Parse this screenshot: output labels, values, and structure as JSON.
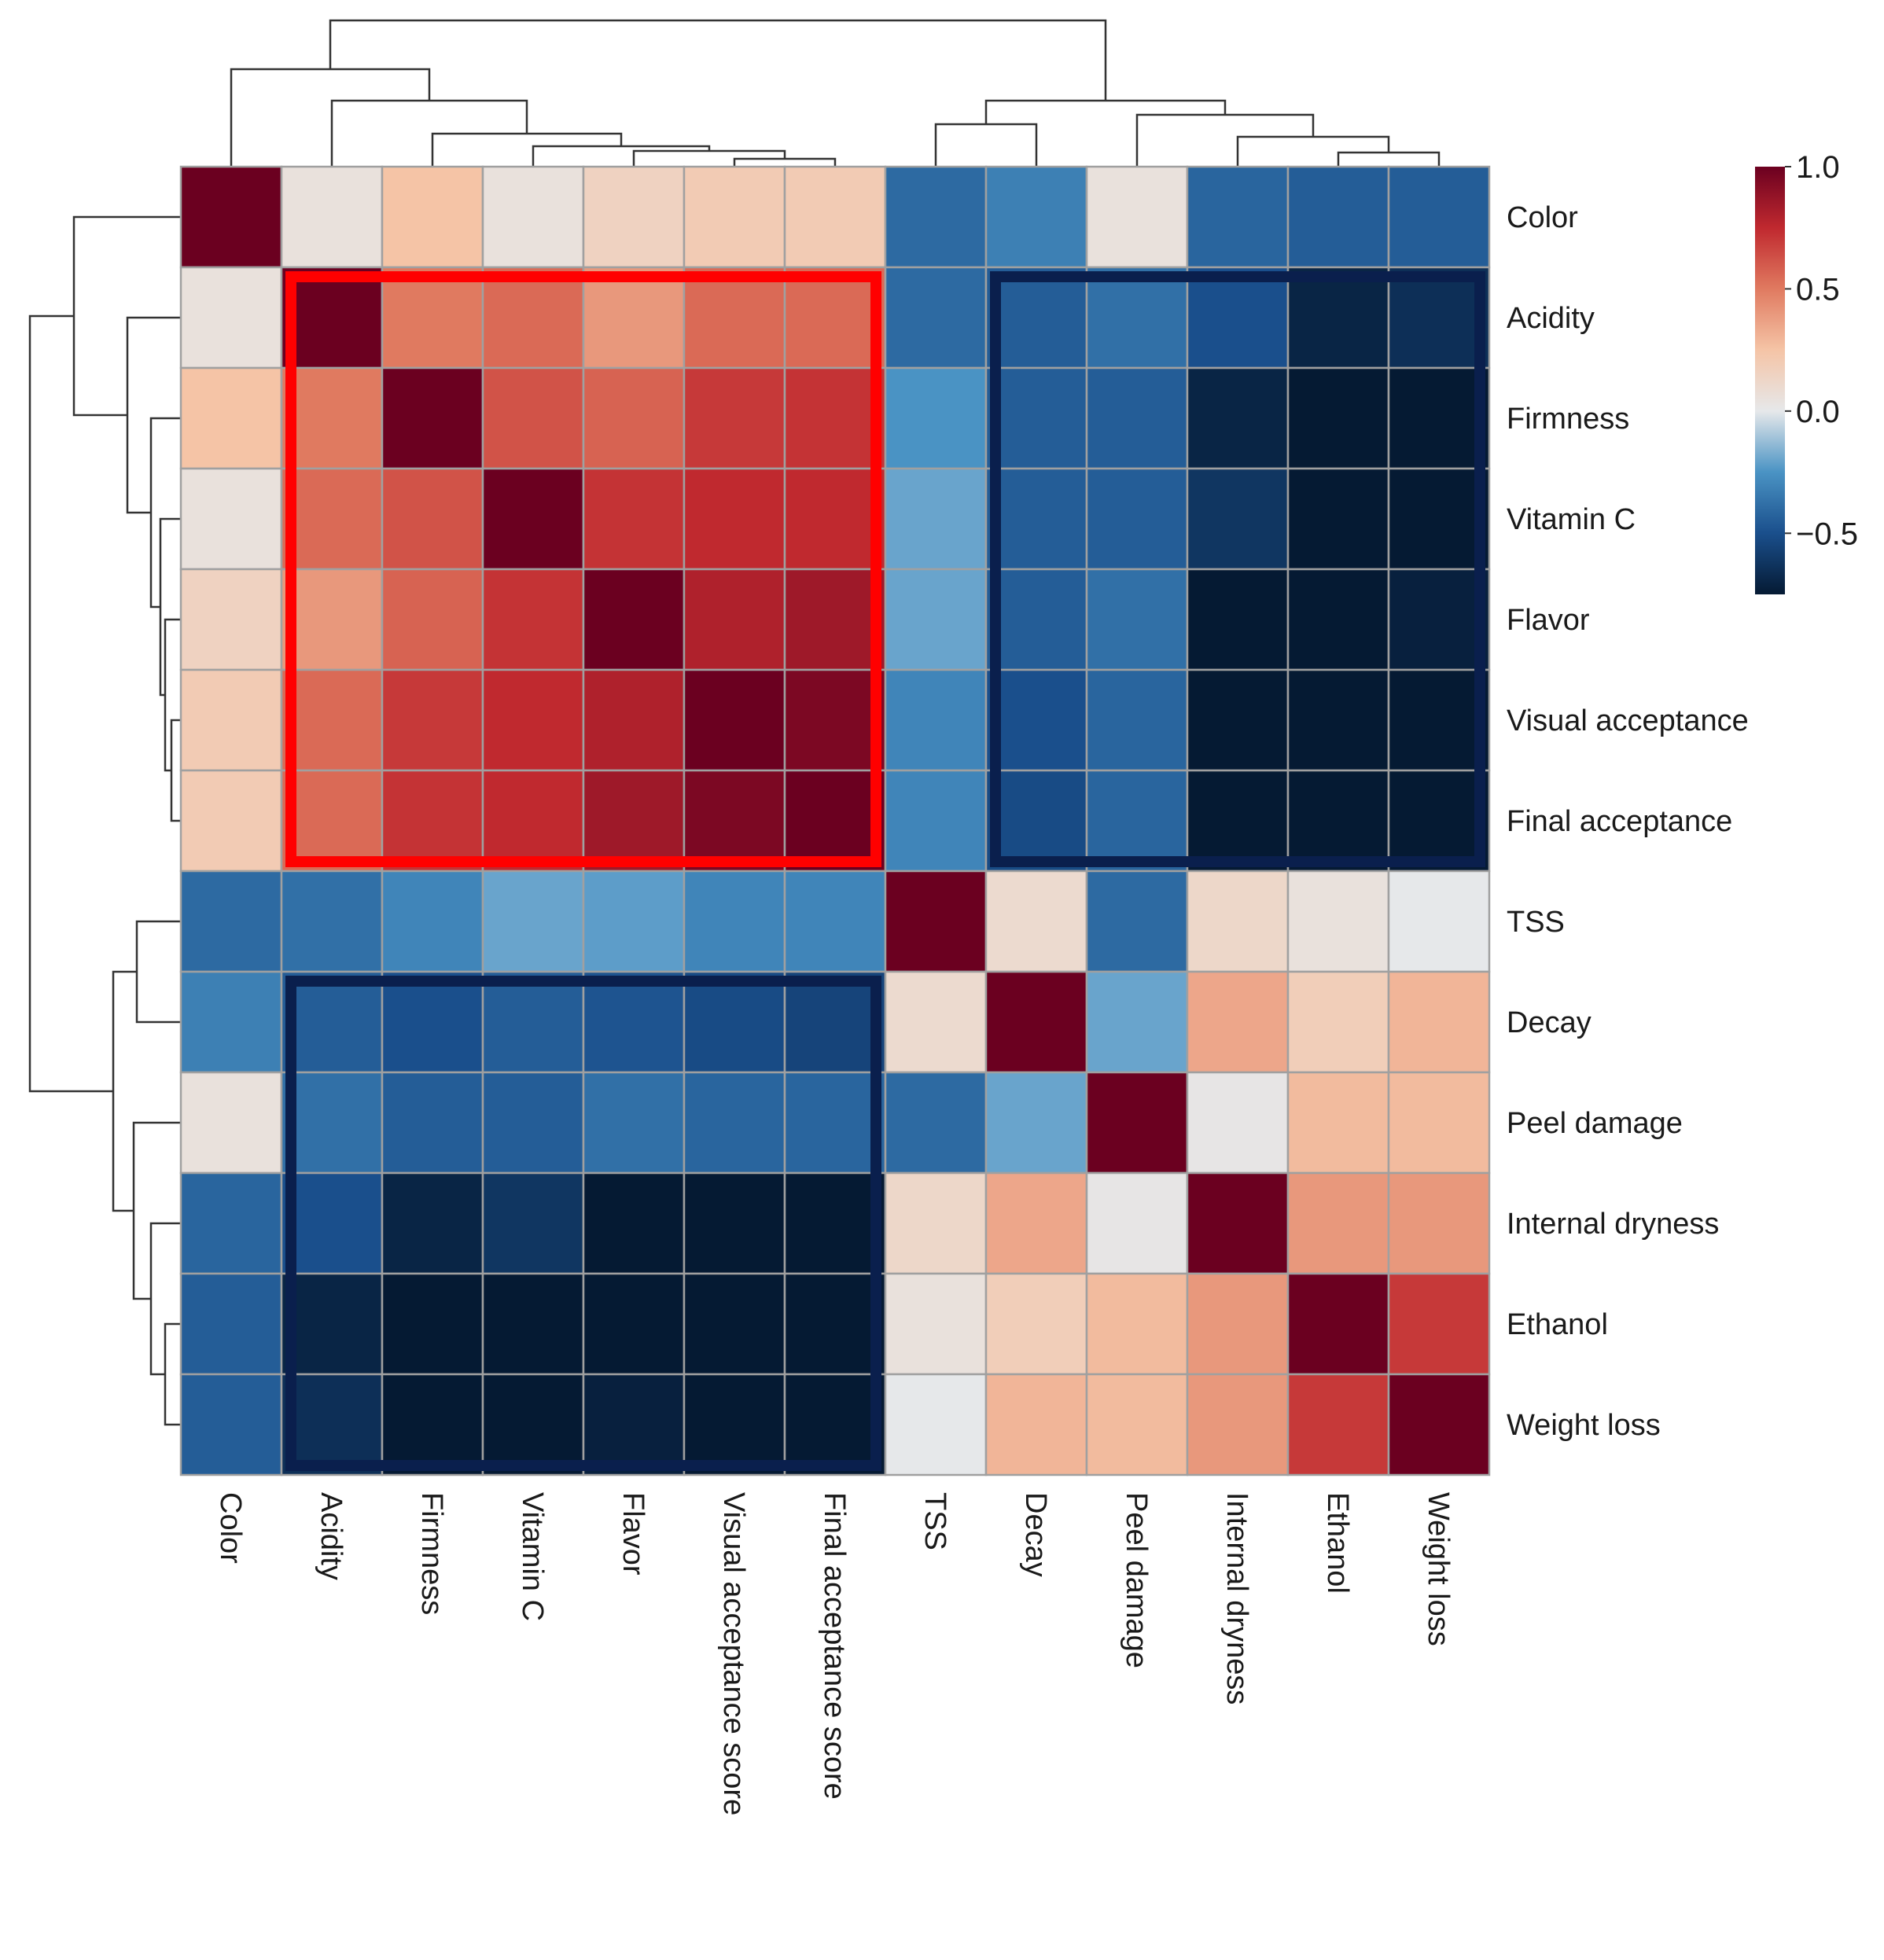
{
  "chart_data": {
    "type": "heatmap",
    "row_labels": [
      "Color",
      "Acidity",
      "Firmness",
      "Vitamin C",
      "Flavor",
      "Visual acceptance",
      "Final acceptance",
      "TSS",
      "Decay",
      "Peel damage",
      "Internal dryness",
      "Ethanol",
      "Weight loss"
    ],
    "col_labels": [
      "Color",
      "Acidity",
      "Firmness",
      "Vitamin C",
      "Flavor",
      "Visual acceptance score",
      "Final acceptance score",
      "TSS",
      "Decay",
      "Peel damage",
      "Internal dryness",
      "Ethanol",
      "Weight loss"
    ],
    "values": [
      [
        1.0,
        0.05,
        0.25,
        0.05,
        0.15,
        0.2,
        0.2,
        -0.4,
        -0.32,
        0.05,
        -0.42,
        -0.45,
        -0.45
      ],
      [
        0.05,
        1.0,
        0.5,
        0.55,
        0.4,
        0.55,
        0.55,
        -0.4,
        -0.45,
        -0.38,
        -0.5,
        -0.7,
        -0.65
      ],
      [
        0.25,
        0.5,
        1.0,
        0.62,
        0.57,
        0.7,
        0.72,
        -0.25,
        -0.45,
        -0.45,
        -0.7,
        -0.85,
        -0.8
      ],
      [
        0.05,
        0.55,
        0.62,
        1.0,
        0.72,
        0.75,
        0.75,
        -0.2,
        -0.45,
        -0.45,
        -0.62,
        -0.9,
        -0.82
      ],
      [
        0.15,
        0.4,
        0.57,
        0.72,
        1.0,
        0.8,
        0.85,
        -0.2,
        -0.45,
        -0.38,
        -0.85,
        -0.82,
        -0.72
      ],
      [
        0.2,
        0.55,
        0.7,
        0.75,
        0.8,
        1.0,
        0.95,
        -0.3,
        -0.5,
        -0.42,
        -0.82,
        -0.9,
        -0.88
      ],
      [
        0.2,
        0.55,
        0.72,
        0.75,
        0.85,
        0.95,
        1.0,
        -0.3,
        -0.52,
        -0.42,
        -0.88,
        -0.88,
        -0.85
      ],
      [
        -0.4,
        -0.38,
        -0.3,
        -0.2,
        -0.22,
        -0.3,
        -0.3,
        1.0,
        0.1,
        -0.4,
        0.12,
        0.05,
        0.0
      ],
      [
        -0.32,
        -0.45,
        -0.5,
        -0.45,
        -0.48,
        -0.52,
        -0.55,
        0.1,
        1.0,
        -0.2,
        0.35,
        0.18,
        0.3
      ],
      [
        0.05,
        -0.38,
        -0.45,
        -0.45,
        -0.38,
        -0.42,
        -0.42,
        -0.4,
        -0.2,
        1.0,
        0.02,
        0.28,
        0.28
      ],
      [
        -0.42,
        -0.5,
        -0.7,
        -0.62,
        -0.85,
        -0.82,
        -0.88,
        0.12,
        0.35,
        0.02,
        1.0,
        0.4,
        0.4
      ],
      [
        -0.45,
        -0.7,
        -0.85,
        -0.9,
        -0.82,
        -0.9,
        -0.88,
        0.05,
        0.18,
        0.28,
        0.4,
        1.0,
        0.7
      ],
      [
        -0.45,
        -0.65,
        -0.8,
        -0.82,
        -0.72,
        -0.88,
        -0.85,
        0.0,
        0.3,
        0.28,
        0.4,
        0.7,
        1.0
      ]
    ],
    "color_scale": {
      "min": -0.75,
      "max": 1.0,
      "ticks": [
        1.0,
        0.5,
        0.0,
        -0.5
      ],
      "tick_labels": [
        "1.0",
        "0.5",
        "0.0",
        "−0.5"
      ],
      "stops": [
        [
          -0.75,
          "#051a33"
        ],
        [
          -0.5,
          "#1a4f8c"
        ],
        [
          -0.25,
          "#4a93c4"
        ],
        [
          0.0,
          "#e6e8ea"
        ],
        [
          0.25,
          "#f5c4a6"
        ],
        [
          0.5,
          "#e07a60"
        ],
        [
          0.75,
          "#c0292f"
        ],
        [
          1.0,
          "#6b0020"
        ]
      ]
    },
    "highlight_boxes": [
      {
        "rows": [
          1,
          6
        ],
        "cols": [
          1,
          6
        ],
        "color": "#ff0000"
      },
      {
        "rows": [
          1,
          6
        ],
        "cols": [
          8,
          12
        ],
        "color": "#0a1f4d"
      },
      {
        "rows": [
          8,
          12
        ],
        "cols": [
          1,
          6
        ],
        "color": "#0a1f4d"
      }
    ],
    "legend_position": "top-right",
    "grid_line_color": "#a0a0a0"
  }
}
